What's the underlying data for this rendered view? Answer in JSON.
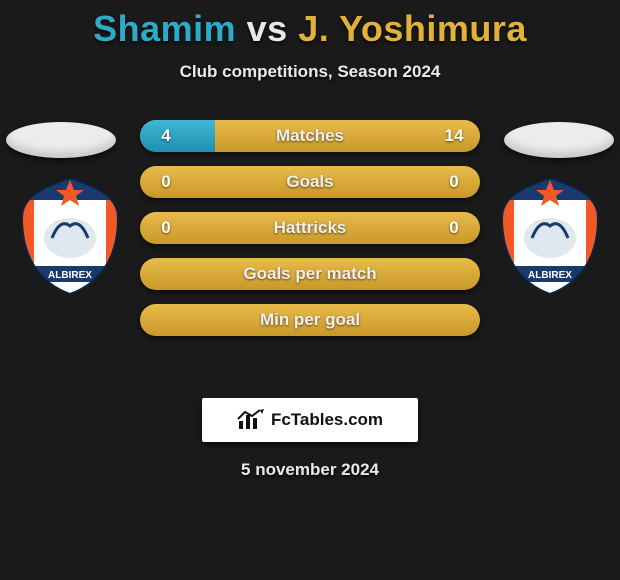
{
  "colors": {
    "background": "#1a1a1a",
    "p1": "#2ea9c9",
    "p2": "#e2b13a",
    "text": "#eaeaea",
    "bar_neutral": "#5c5c5c"
  },
  "title": {
    "player1": "Shamim",
    "vs": "vs",
    "player2": "J. Yoshimura"
  },
  "subtitle": "Club competitions, Season 2024",
  "stats": [
    {
      "label": "Matches",
      "p1": "4",
      "p2": "14",
      "p1_pct": 22,
      "p2_pct": 78,
      "mode": "split"
    },
    {
      "label": "Goals",
      "p1": "0",
      "p2": "0",
      "p1_pct": 0,
      "p2_pct": 0,
      "mode": "neutral"
    },
    {
      "label": "Hattricks",
      "p1": "0",
      "p2": "0",
      "p1_pct": 0,
      "p2_pct": 0,
      "mode": "neutral"
    },
    {
      "label": "Goals per match",
      "p1": "",
      "p2": "",
      "p1_pct": 0,
      "p2_pct": 0,
      "mode": "neutral"
    },
    {
      "label": "Min per goal",
      "p1": "",
      "p2": "",
      "p1_pct": 0,
      "p2_pct": 0,
      "mode": "neutral"
    }
  ],
  "logo_text": "FcTables.com",
  "date": "5 november 2024",
  "crest": {
    "text": "ALBIREX",
    "bg": "#ffffff",
    "stripe": "#f15a24",
    "accent": "#1a3a6e"
  }
}
